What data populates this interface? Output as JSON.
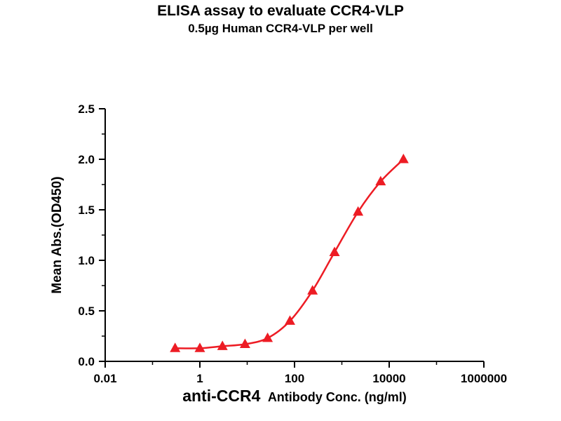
{
  "chart_data": {
    "type": "line",
    "title": "ELISA assay to evaluate CCR4-VLP",
    "subtitle": "0.5µg Human CCR4-VLP per well",
    "xlabel_main": "anti-CCR4",
    "xlabel_rest": "Antibody Conc. (ng/ml)",
    "ylabel": "Mean Abs.(OD450)",
    "xscale": "log",
    "xlim": [
      0.01,
      1000000
    ],
    "ylim": [
      0,
      2.5
    ],
    "grid": false,
    "legend": false,
    "marker": "triangle",
    "color": "#ed1c24",
    "x": [
      0.3,
      1,
      3,
      9,
      27,
      80,
      240,
      700,
      2200,
      6600,
      20000
    ],
    "y": [
      0.13,
      0.13,
      0.15,
      0.17,
      0.23,
      0.4,
      0.7,
      1.08,
      1.48,
      1.78,
      2.0
    ],
    "x_ticks": [
      {
        "v": 0.01,
        "label": "0.01"
      },
      {
        "v": 1,
        "label": "1"
      },
      {
        "v": 100,
        "label": "100"
      },
      {
        "v": 10000,
        "label": "10000"
      },
      {
        "v": 1000000,
        "label": "1000000"
      }
    ],
    "x_minor_ticks": [
      0.1,
      10,
      1000,
      100000
    ],
    "y_ticks": [
      {
        "v": 0.0,
        "label": "0.0"
      },
      {
        "v": 0.5,
        "label": "0.5"
      },
      {
        "v": 1.0,
        "label": "1.0"
      },
      {
        "v": 1.5,
        "label": "1.5"
      },
      {
        "v": 2.0,
        "label": "2.0"
      },
      {
        "v": 2.5,
        "label": "2.5"
      }
    ],
    "y_minor_ticks": [
      0.25,
      0.75,
      1.25,
      1.75,
      2.25
    ]
  }
}
